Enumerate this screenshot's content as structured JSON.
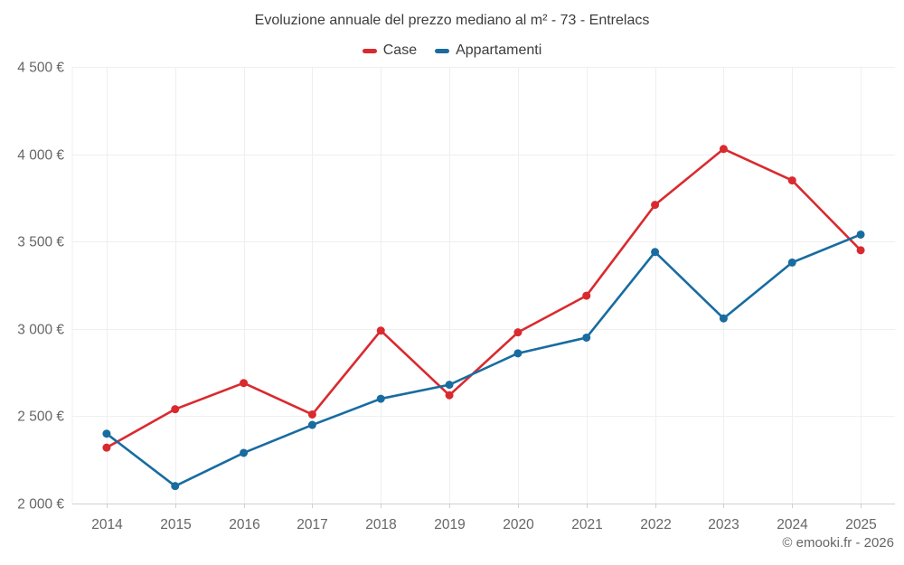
{
  "title": "Evoluzione annuale del prezzo mediano al m² - 73 - Entrelacs",
  "attribution": "© emooki.fr - 2026",
  "chart_data": {
    "type": "line",
    "title": "Evoluzione annuale del prezzo mediano al m² - 73 - Entrelacs",
    "xlabel": "",
    "ylabel": "",
    "x": [
      "2014",
      "2015",
      "2016",
      "2017",
      "2018",
      "2019",
      "2020",
      "2021",
      "2022",
      "2023",
      "2024",
      "2025"
    ],
    "series": [
      {
        "name": "Case",
        "color": "#d92a2f",
        "values": [
          2320,
          2540,
          2690,
          2510,
          2990,
          2620,
          2980,
          3190,
          3710,
          4030,
          3850,
          3450
        ]
      },
      {
        "name": "Appartamenti",
        "color": "#186ca0",
        "values": [
          2400,
          2100,
          2290,
          2450,
          2600,
          2680,
          2860,
          2950,
          3440,
          3060,
          3380,
          3540
        ]
      }
    ],
    "ylim": [
      2000,
      4500
    ],
    "y_ticks": [
      {
        "value": 2000,
        "label": "2 000 €"
      },
      {
        "value": 2500,
        "label": "2 500 €"
      },
      {
        "value": 3000,
        "label": "3 000 €"
      },
      {
        "value": 3500,
        "label": "3 500 €"
      },
      {
        "value": 4000,
        "label": "4 000 €"
      },
      {
        "value": 4500,
        "label": "4 500 €"
      }
    ],
    "grid": true,
    "legend_position": "top",
    "colors": {
      "grid_line": "#efefef",
      "axis_line": "#d0d0d0",
      "tick_label": "#666666",
      "title_text": "#3d3d3d"
    }
  }
}
